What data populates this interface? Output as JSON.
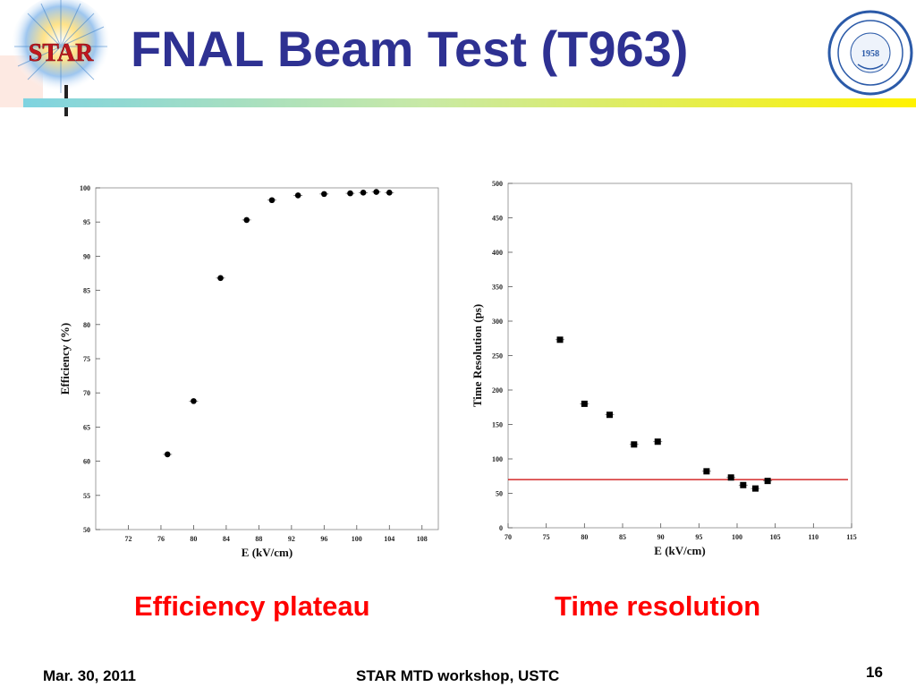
{
  "slide": {
    "title": "FNAL Beam Test (T963)",
    "star_logo_text": "STAR",
    "ustc_logo_year": "1958",
    "ustc_logo_text": "University of Science and Technology of China",
    "caption_left": "Efficiency plateau",
    "caption_right": "Time resolution",
    "footer_date": "Mar. 30, 2011",
    "footer_event": "STAR MTD workshop, USTC",
    "page_number": "16",
    "colors": {
      "title": "#2e3192",
      "caption": "#ff0000",
      "reference_line": "#cc0000"
    }
  },
  "chart_data": [
    {
      "type": "scatter",
      "xlabel": "E (kV/cm)",
      "ylabel": "Efficiency (%)",
      "xlim": [
        68,
        110
      ],
      "ylim": [
        50,
        100
      ],
      "x_ticks": [
        "72",
        "76",
        "80",
        "84",
        "88",
        "92",
        "96",
        "100",
        "104",
        "108"
      ],
      "y_ticks": [
        "50",
        "55",
        "60",
        "65",
        "70",
        "75",
        "80",
        "85",
        "90",
        "95",
        "100"
      ],
      "marker": "circle",
      "x": [
        76.8,
        80,
        83.3,
        86.5,
        89.6,
        92.8,
        96,
        99.2,
        100.8,
        102.4,
        104
      ],
      "y": [
        61.0,
        68.8,
        86.8,
        95.3,
        98.2,
        98.9,
        99.1,
        99.2,
        99.3,
        99.4,
        99.3
      ]
    },
    {
      "type": "scatter",
      "xlabel": "E (kV/cm)",
      "ylabel": "Time Resolution (ps)",
      "xlim": [
        70,
        115
      ],
      "ylim": [
        0,
        500
      ],
      "x_ticks": [
        "70",
        "75",
        "80",
        "85",
        "90",
        "95",
        "100",
        "105",
        "110",
        "115"
      ],
      "y_ticks": [
        "0",
        "50",
        "100",
        "150",
        "200",
        "250",
        "300",
        "350",
        "400",
        "450",
        "500"
      ],
      "marker": "square",
      "x": [
        76.8,
        80,
        83.3,
        86.5,
        89.6,
        96,
        99.2,
        100.8,
        102.4,
        104
      ],
      "y": [
        273,
        180,
        164,
        121,
        125,
        82,
        73,
        62,
        57,
        68
      ],
      "reference_line_y": 70
    }
  ]
}
